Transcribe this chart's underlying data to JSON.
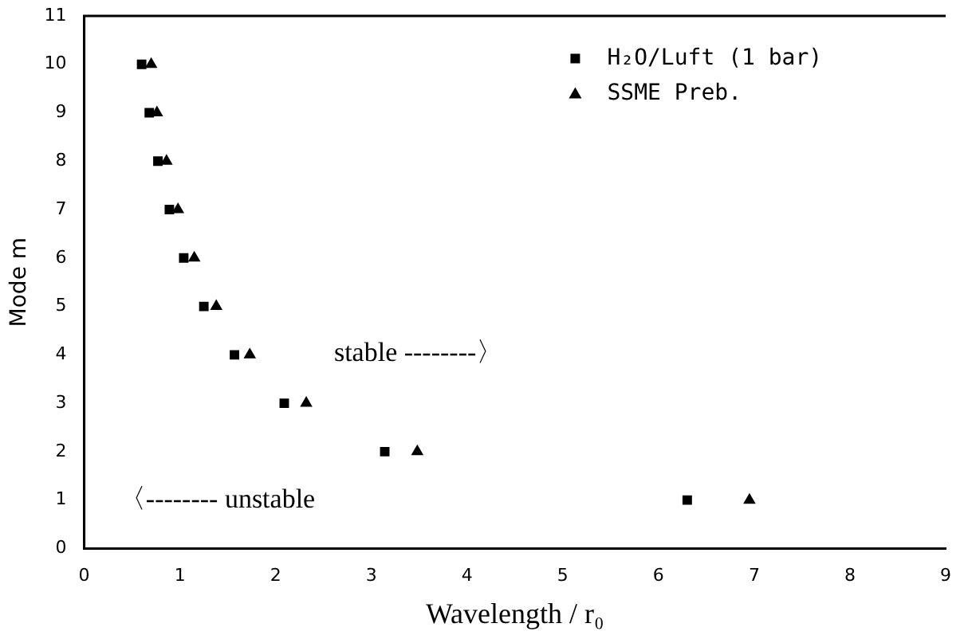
{
  "chart_data": {
    "type": "scatter",
    "xlabel": "Wavelength / r₀",
    "ylabel": "Mode m",
    "xlim": [
      0,
      9
    ],
    "ylim": [
      0,
      11
    ],
    "xticks": [
      0,
      1,
      2,
      3,
      4,
      5,
      6,
      7,
      8,
      9
    ],
    "yticks": [
      0,
      1,
      2,
      3,
      4,
      5,
      6,
      7,
      8,
      9,
      10,
      11
    ],
    "grid": false,
    "legend": "top right",
    "series": [
      {
        "name": "H₂O/Luft (1 bar)",
        "color": "#000000",
        "marker": "square",
        "x": [
          0.6,
          0.68,
          0.77,
          0.89,
          1.04,
          1.25,
          1.57,
          2.09,
          3.14,
          6.3
        ],
        "values": [
          10,
          9,
          8,
          7,
          6,
          5,
          4,
          3,
          2,
          1
        ]
      },
      {
        "name": "SSME Preb.",
        "color": "#000000",
        "marker": "triangle",
        "x": [
          0.7,
          0.76,
          0.86,
          0.98,
          1.15,
          1.38,
          1.73,
          2.32,
          3.48,
          6.95
        ],
        "values": [
          10,
          9,
          8,
          7,
          6,
          5,
          4,
          3,
          2,
          1
        ]
      }
    ],
    "annotations": [
      "stable --------〉",
      "〈-------- unstable"
    ]
  }
}
